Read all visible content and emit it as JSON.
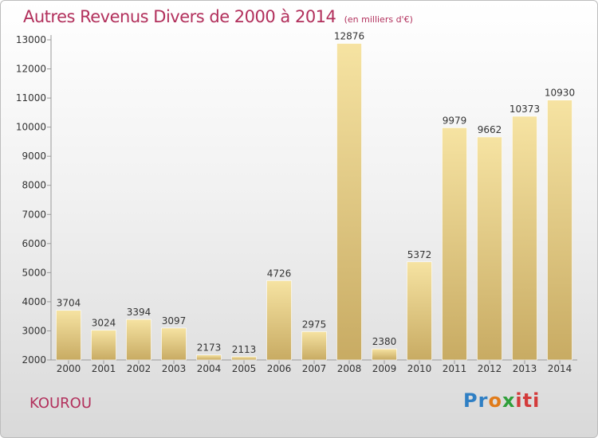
{
  "header": {
    "title": "Autres Revenus Divers de 2000 à 2014",
    "unit": "(en milliers d'€)"
  },
  "place": "KOUROU",
  "logo": {
    "text": "Proxiti",
    "parts": [
      "Pr",
      "o",
      "x",
      "iti"
    ]
  },
  "colors": {
    "title": "#b2305c",
    "bar_light": "#f6e3a2",
    "bar_dark": "#c8ab63"
  },
  "chart_data": {
    "type": "bar",
    "categories": [
      "2000",
      "2001",
      "2002",
      "2003",
      "2004",
      "2005",
      "2006",
      "2007",
      "2008",
      "2009",
      "2010",
      "2011",
      "2012",
      "2013",
      "2014"
    ],
    "values": [
      3704,
      3024,
      3394,
      3097,
      2173,
      2113,
      4726,
      2975,
      12876,
      2380,
      5372,
      9979,
      9662,
      10373,
      10930
    ],
    "title": "Autres Revenus Divers de 2000 à 2014",
    "xlabel": "",
    "ylabel": "",
    "ylim": [
      2000,
      13000
    ],
    "yticks": [
      2000,
      3000,
      4000,
      5000,
      6000,
      7000,
      8000,
      9000,
      10000,
      11000,
      12000,
      13000
    ],
    "grid": false,
    "data_labels": true
  }
}
